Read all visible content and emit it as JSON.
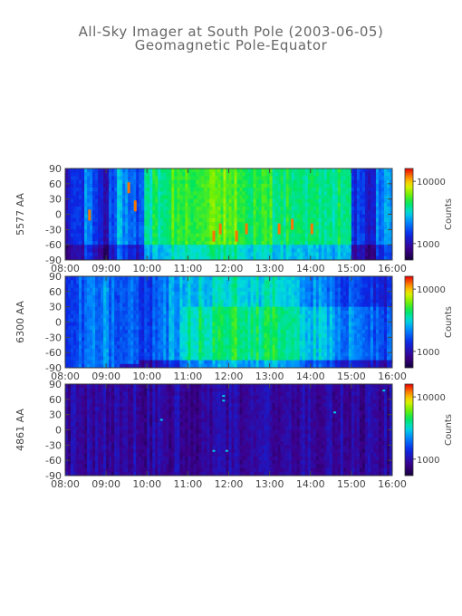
{
  "title": "All-Sky Imager at South Pole (2003-06-05)",
  "subtitle": "Geomagnetic Pole-Equator",
  "chart_data": [
    {
      "type": "heatmap",
      "ylabel": "5577 AA",
      "colorbar_label": "Counts",
      "colorbar_ticks": [
        "10000",
        "1000"
      ],
      "colorbar_scale": "log",
      "x_ticks": [
        "08:00",
        "09:00",
        "10:00",
        "11:00",
        "12:00",
        "13:00",
        "14:00",
        "15:00",
        "16:00"
      ],
      "x_range": [
        "08:00",
        "16:00"
      ],
      "y_ticks": [
        "90",
        "60",
        "30",
        "0",
        "-30",
        "-60",
        "-90"
      ],
      "ylim": [
        -90,
        90
      ],
      "profile": [
        0.25,
        0.32,
        0.4,
        0.3,
        0.2,
        0.3,
        0.45,
        0.4,
        0.35,
        0.55,
        0.6,
        0.62,
        0.65,
        0.64,
        0.66,
        0.68,
        0.7,
        0.72,
        0.7,
        0.68,
        0.66,
        0.65,
        0.63,
        0.64,
        0.62,
        0.6,
        0.58,
        0.56,
        0.58,
        0.6,
        0.62,
        0.6,
        0.58,
        0.3,
        0.28,
        0.25,
        0.4,
        0.42
      ],
      "hotspots": [
        [
          0.07,
          0.45
        ],
        [
          0.19,
          0.15
        ],
        [
          0.21,
          0.35
        ],
        [
          0.45,
          0.68
        ],
        [
          0.47,
          0.6
        ],
        [
          0.52,
          0.68
        ],
        [
          0.55,
          0.6
        ],
        [
          0.65,
          0.6
        ],
        [
          0.69,
          0.55
        ],
        [
          0.75,
          0.6
        ]
      ],
      "points": []
    },
    {
      "type": "heatmap",
      "ylabel": "6300 AA",
      "colorbar_label": "Counts",
      "colorbar_ticks": [
        "10000",
        "1000"
      ],
      "colorbar_scale": "log",
      "x_ticks": [
        "08:00",
        "09:00",
        "10:00",
        "11:00",
        "12:00",
        "13:00",
        "14:00",
        "15:00",
        "16:00"
      ],
      "x_range": [
        "08:00",
        "16:00"
      ],
      "y_ticks": [
        "90",
        "60",
        "30",
        "0",
        "-30",
        "-60",
        "-90"
      ],
      "ylim": [
        -90,
        90
      ],
      "profile": [
        0.3,
        0.35,
        0.38,
        0.4,
        0.42,
        0.38,
        0.35,
        0.33,
        0.3,
        0.32,
        0.35,
        0.38,
        0.45,
        0.5,
        0.55,
        0.58,
        0.6,
        0.62,
        0.63,
        0.62,
        0.6,
        0.58,
        0.6,
        0.62,
        0.6,
        0.58,
        0.55,
        0.52,
        0.5,
        0.48,
        0.45,
        0.42,
        0.4,
        0.38,
        0.36,
        0.35,
        0.34,
        0.32
      ],
      "hotspots": [],
      "points": []
    },
    {
      "type": "heatmap",
      "ylabel": "4861 AA",
      "colorbar_label": "Counts",
      "colorbar_ticks": [
        "10000",
        "1000"
      ],
      "colorbar_scale": "log",
      "x_ticks": [
        "08:00",
        "09:00",
        "10:00",
        "11:00",
        "12:00",
        "13:00",
        "14:00",
        "15:00",
        "16:00"
      ],
      "x_range": [
        "08:00",
        "16:00"
      ],
      "y_ticks": [
        "90",
        "60",
        "30",
        "0",
        "-30",
        "-60",
        "-90"
      ],
      "ylim": [
        -90,
        90
      ],
      "profile": [
        0.15,
        0.15,
        0.15,
        0.15,
        0.15,
        0.15,
        0.15,
        0.15,
        0.15,
        0.15,
        0.15,
        0.15,
        0.15,
        0.15,
        0.15,
        0.15,
        0.15,
        0.15,
        0.15,
        0.15,
        0.15,
        0.15,
        0.15,
        0.15,
        0.15,
        0.15,
        0.15,
        0.15,
        0.15,
        0.15,
        0.15,
        0.15,
        0.15,
        0.15,
        0.15,
        0.15,
        0.15,
        0.15
      ],
      "hotspots": [],
      "points": [
        [
          0.48,
          0.12
        ],
        [
          0.48,
          0.17
        ],
        [
          0.45,
          0.72
        ],
        [
          0.49,
          0.72
        ],
        [
          0.29,
          0.38
        ],
        [
          0.82,
          0.3
        ],
        [
          0.97,
          0.06
        ]
      ]
    }
  ]
}
